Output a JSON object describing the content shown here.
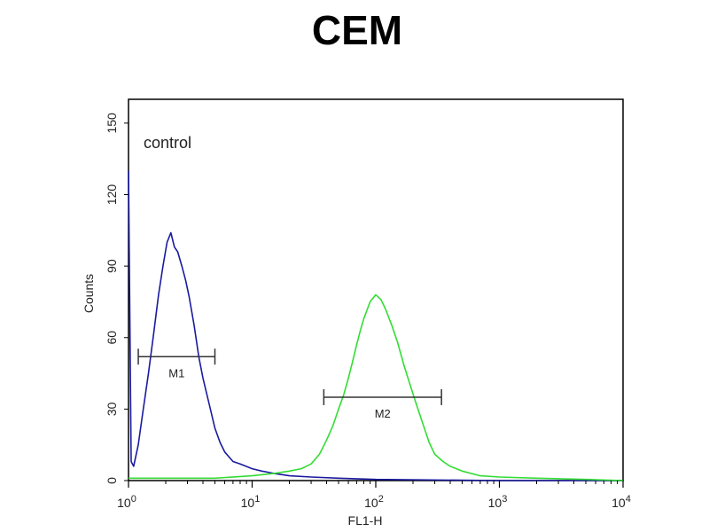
{
  "chart_data": {
    "type": "line",
    "title": "CEM",
    "xlabel": "FL1-H",
    "ylabel": "Counts",
    "x_scale": "log",
    "xlim": [
      1,
      10000
    ],
    "ylim": [
      0,
      160
    ],
    "x_ticks": [
      {
        "value": 1,
        "base": "10",
        "exp": "0"
      },
      {
        "value": 10,
        "base": "10",
        "exp": "1"
      },
      {
        "value": 100,
        "base": "10",
        "exp": "2"
      },
      {
        "value": 1000,
        "base": "10",
        "exp": "3"
      },
      {
        "value": 10000,
        "base": "10",
        "exp": "4"
      }
    ],
    "y_ticks": [
      0,
      30,
      60,
      90,
      120,
      150
    ],
    "grid": false,
    "annotations": [
      {
        "text": "control"
      }
    ],
    "gates": [
      {
        "name": "M1",
        "x_range": [
          1.2,
          5.0
        ],
        "y": 52
      },
      {
        "name": "M2",
        "x_range": [
          38,
          340
        ],
        "y": 35
      }
    ],
    "series": [
      {
        "color": "#1a1aa0",
        "x": [
          1.0,
          1.05,
          1.1,
          1.2,
          1.3,
          1.45,
          1.6,
          1.75,
          1.9,
          2.05,
          2.2,
          2.35,
          2.5,
          2.7,
          2.9,
          3.1,
          3.4,
          3.7,
          4.0,
          4.5,
          5.0,
          5.5,
          6.0,
          7.0,
          8.0,
          10.0,
          12.0,
          15.0,
          20.0,
          30.0,
          50.0,
          100.0,
          1000.0,
          10000.0
        ],
        "y": [
          130,
          8,
          6,
          15,
          28,
          45,
          62,
          78,
          90,
          100,
          104,
          98,
          96,
          90,
          84,
          77,
          65,
          52,
          43,
          32,
          22,
          16,
          12,
          8,
          7,
          5,
          4,
          3,
          2,
          1.5,
          1,
          0.5,
          0,
          0
        ]
      },
      {
        "color": "#33dd33",
        "x": [
          1.0,
          2.0,
          5.0,
          10.0,
          15.0,
          20.0,
          25.0,
          30.0,
          35.0,
          40.0,
          45.0,
          50.0,
          55.0,
          60.0,
          65.0,
          70.0,
          75.0,
          80.0,
          90.0,
          100.0,
          110.0,
          120.0,
          135.0,
          150.0,
          170.0,
          190.0,
          210.0,
          240.0,
          270.0,
          300.0,
          350.0,
          400.0,
          500.0,
          700.0,
          1000.0,
          2000.0,
          5000.0,
          10000.0
        ],
        "y": [
          1,
          1,
          1,
          2,
          3,
          4,
          5,
          7,
          11,
          17,
          23,
          30,
          36,
          43,
          50,
          57,
          63,
          68,
          75,
          78,
          76,
          72,
          65,
          58,
          48,
          40,
          33,
          24,
          16,
          11,
          8,
          6,
          4,
          2,
          1.5,
          1,
          0.5,
          0
        ]
      }
    ]
  }
}
